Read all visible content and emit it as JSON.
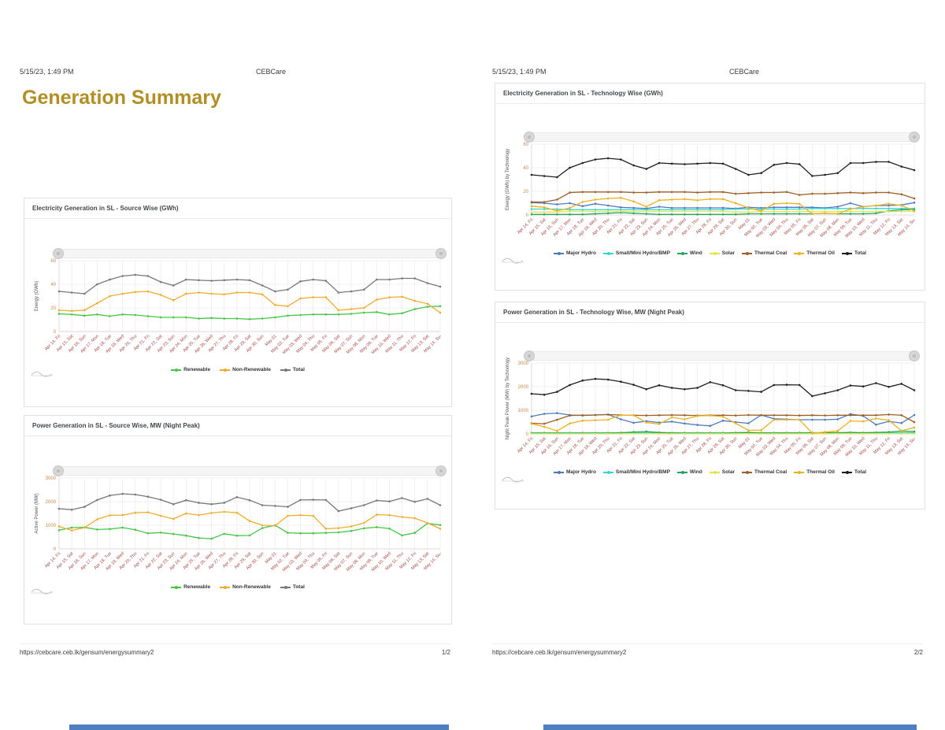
{
  "pages": [
    {
      "header_left": "5/15/23, 1:49 PM",
      "header_center": "CEBCare",
      "title": "Generation Summary",
      "footer_url": "https://cebcare.ceb.lk/gensum/energysummary2",
      "footer_page": "1/2"
    },
    {
      "header_left": "5/15/23, 1:49 PM",
      "header_center": "CEBCare",
      "footer_url": "https://cebcare.ceb.lk/gensum/energysummary2",
      "footer_page": "2/2"
    }
  ],
  "colors": {
    "title_accent": "#b28f25",
    "x_tick_label": "#a94442",
    "y_tick_label": "#c8894b",
    "grid": "#efe9e9",
    "axis_line": "#e0d8d8",
    "watermark": "#bdbdbd"
  },
  "chart_data": [
    {
      "type": "line",
      "title": "Electricity Generation in SL - Source Wise (GWh)",
      "ylabel": "Energy (GWh)",
      "xlabel": "",
      "ylim": [
        0,
        60
      ],
      "yticks": [
        0,
        20,
        40,
        60
      ],
      "grid": true,
      "legend_position": "bottom",
      "categories": [
        "Apr 14, Fri",
        "Apr 15, Sat",
        "Apr 16, Sun",
        "Apr 17, Mon",
        "Apr 18, Tue",
        "Apr 19, Wed",
        "Apr 20, Thu",
        "Apr 21, Fri",
        "Apr 22, Sat",
        "Apr 23, Sun",
        "Apr 24, Mon",
        "Apr 25, Tue",
        "Apr 26, Wed",
        "Apr 27, Thu",
        "Apr 28, Fri",
        "Apr 29, Sat",
        "Apr 30, Sun",
        "May 01",
        "May 02, Tue",
        "May 03, Wed",
        "May 04, Thu",
        "May 05, Fri",
        "May 06, Sat",
        "May 07, Sun",
        "May 08, Mon",
        "May 09, Tue",
        "May 10, Wed",
        "May 11, Thu",
        "May 12, Fri",
        "May 13, Sat",
        "May 14, Su-"
      ],
      "series": [
        {
          "name": "Renewable",
          "color": "#46c646",
          "values": [
            15,
            14.5,
            13.5,
            14.5,
            13,
            14.5,
            14,
            13,
            12,
            12,
            12,
            11,
            11.5,
            11,
            11,
            10.5,
            11,
            12,
            13.5,
            14,
            14.5,
            14.5,
            14.5,
            15,
            16,
            16.5,
            14.5,
            15.5,
            19,
            21,
            21.5
          ]
        },
        {
          "name": "Non-Renewable",
          "color": "#efac2d",
          "values": [
            18,
            17.5,
            18,
            24,
            30,
            32,
            33.5,
            34,
            31,
            26.5,
            32,
            33,
            32,
            31.5,
            33,
            33,
            31.5,
            22.5,
            21.5,
            28,
            29,
            29,
            18,
            19,
            20,
            27,
            29,
            29.5,
            26,
            23.5,
            16
          ]
        },
        {
          "name": "Total",
          "color": "#787878",
          "values": [
            34,
            33,
            32,
            40,
            44,
            47,
            48,
            47,
            42,
            39,
            44,
            43.5,
            43,
            43.5,
            44,
            43.5,
            39,
            34,
            35.5,
            42.5,
            44,
            43,
            33,
            34,
            35.5,
            44,
            44,
            45,
            45,
            41,
            38
          ]
        }
      ]
    },
    {
      "type": "line",
      "title": "Power Generation in SL - Source Wise, MW (Night Peak)",
      "ylabel": "Active Power (MW)",
      "xlabel": "",
      "ylim": [
        0,
        3000
      ],
      "yticks": [
        0,
        1000,
        2000,
        3000
      ],
      "grid": true,
      "legend_position": "bottom",
      "categories": [
        "Apr 14, Fri",
        "Apr 15, Sat",
        "Apr 16, Sun",
        "Apr 17, Mon",
        "Apr 18, Tue",
        "Apr 19, Wed",
        "Apr 20, Thu",
        "Apr 21, Fri",
        "Apr 22, Sat",
        "Apr 23, Sun",
        "Apr 24, Mon",
        "Apr 25, Tue",
        "Apr 26, Wed",
        "Apr 27, Thu",
        "Apr 28, Fri",
        "Apr 29, Sat",
        "Apr 30, Sun",
        "May 01",
        "May 02, Tue",
        "May 03, Wed",
        "May 04, Thu",
        "May 05, Fri",
        "May 06, Sat",
        "May 07, Sun",
        "May 08, Mon",
        "May 09, Tue",
        "May 10, Wed",
        "May 11, Thu",
        "May 12, Fri",
        "May 13, Sat",
        "May 14, Su-"
      ],
      "series": [
        {
          "name": "Renewable",
          "color": "#46c646",
          "values": [
            790,
            900,
            910,
            820,
            840,
            900,
            810,
            660,
            690,
            630,
            560,
            460,
            430,
            640,
            560,
            570,
            880,
            1000,
            680,
            660,
            660,
            680,
            700,
            760,
            870,
            920,
            860,
            570,
            680,
            1080,
            1010
          ]
        },
        {
          "name": "Non-Renewable",
          "color": "#efac2d",
          "values": [
            950,
            780,
            900,
            1250,
            1420,
            1430,
            1530,
            1550,
            1400,
            1270,
            1500,
            1430,
            1520,
            1570,
            1530,
            1180,
            1000,
            980,
            1400,
            1430,
            1400,
            850,
            880,
            950,
            1100,
            1450,
            1430,
            1350,
            1300,
            1100,
            850
          ]
        },
        {
          "name": "Total",
          "color": "#787878",
          "values": [
            1700,
            1660,
            1780,
            2070,
            2260,
            2330,
            2300,
            2210,
            2080,
            1890,
            2060,
            1950,
            1890,
            1950,
            2190,
            2060,
            1850,
            1820,
            1780,
            2070,
            2080,
            2070,
            1600,
            1720,
            1850,
            2050,
            2010,
            2150,
            1990,
            2120,
            1850
          ]
        }
      ]
    },
    {
      "type": "line",
      "title": "Electricity Generation in SL - Technology Wise (GWh)",
      "ylabel": "Energy (GWh) by Technology",
      "xlabel": "",
      "ylim": [
        0,
        60
      ],
      "yticks": [
        0,
        20,
        40,
        60
      ],
      "grid": true,
      "legend_position": "bottom",
      "categories": [
        "Apr 14, Fri",
        "Apr 15, Sat",
        "Apr 16, Sun",
        "Apr 17, Mon",
        "Apr 18, Tue",
        "Apr 19, Wed",
        "Apr 20, Thu",
        "Apr 21, Fri",
        "Apr 22, Sat",
        "Apr 23, Sun",
        "Apr 24, Mon",
        "Apr 25, Tue",
        "Apr 26, Wed",
        "Apr 27, Thu",
        "Apr 28, Fri",
        "Apr 29, Sat",
        "Apr 30, Sun",
        "May 01",
        "May 02, Tue",
        "May 03, Wed",
        "May 04, Thu",
        "May 05, Fri",
        "May 06, Sat",
        "May 07, Sun",
        "May 08, Mon",
        "May 09, Tue",
        "May 10, Wed",
        "May 11, Thu",
        "May 12, Fri",
        "May 13, Sat",
        "May 14, Su-"
      ],
      "series": [
        {
          "name": "Major Hydro",
          "color": "#4d79c0",
          "values": [
            10.5,
            10,
            9,
            10,
            7.5,
            9.5,
            8,
            6.5,
            6,
            5.5,
            7,
            6,
            6,
            6,
            6,
            6,
            5.5,
            6.5,
            6,
            6.5,
            6.5,
            6.5,
            6.5,
            6,
            7,
            10,
            7,
            8,
            8,
            8.5,
            10.5
          ]
        },
        {
          "name": "Small/Mini Hydro/BMP",
          "color": "#36d6d6",
          "values": [
            5,
            5,
            5,
            4.5,
            4.5,
            4.5,
            4.5,
            4.5,
            4.5,
            4.5,
            4.5,
            4.5,
            4.5,
            4.5,
            4.5,
            4.5,
            5,
            5,
            5,
            5,
            5,
            5,
            5.5,
            5.5,
            5.5,
            5.5,
            5.5,
            5.5,
            5.5,
            5.5,
            5.5
          ]
        },
        {
          "name": "Wind",
          "color": "#26a65b",
          "values": [
            0.5,
            0.5,
            0.5,
            0.5,
            0.5,
            1,
            1.5,
            2,
            1.5,
            1,
            0.5,
            0.5,
            0.5,
            0.5,
            0.5,
            0.5,
            0.5,
            1,
            1,
            1,
            1,
            1,
            1,
            1.5,
            1,
            1,
            1,
            1.5,
            3.5,
            4.5,
            4.5
          ]
        },
        {
          "name": "Solar",
          "color": "#e4e44e",
          "values": [
            2.5,
            2.5,
            2.5,
            3,
            3,
            3,
            3,
            3,
            3,
            3,
            3,
            3,
            3,
            3,
            3,
            3,
            2.5,
            2.5,
            3,
            3,
            3,
            3,
            3,
            3,
            3,
            3,
            3,
            3,
            3,
            3,
            3
          ]
        },
        {
          "name": "Thermal Coal",
          "color": "#9d6026",
          "values": [
            11,
            11,
            13,
            19,
            19.5,
            19.5,
            19.5,
            19.5,
            19,
            19,
            19.5,
            19.5,
            19.5,
            19,
            19.5,
            19.5,
            18,
            18.5,
            19,
            19,
            19.5,
            17,
            18,
            18,
            18.5,
            19,
            18.5,
            19,
            19,
            17.5,
            14
          ]
        },
        {
          "name": "Thermal Oil",
          "color": "#edb120",
          "values": [
            7.5,
            6.5,
            3.5,
            6,
            11,
            13,
            14,
            14.5,
            11.5,
            7,
            12.5,
            13,
            13.5,
            12.5,
            13.5,
            13.5,
            10,
            6,
            3.5,
            9.5,
            10,
            9.5,
            1,
            1.5,
            1,
            5,
            7,
            8,
            9.5,
            8,
            3.5
          ]
        },
        {
          "name": "Total",
          "color": "#1f1f1f",
          "values": [
            34,
            33,
            32,
            40,
            44,
            47,
            48,
            47,
            42,
            39,
            44,
            43.5,
            43,
            43.5,
            44,
            43.5,
            39,
            34,
            35.5,
            42.5,
            44,
            43,
            33,
            34,
            35.5,
            44,
            44,
            45,
            45,
            41,
            38
          ]
        }
      ]
    },
    {
      "type": "line",
      "title": "Power Generation in SL - Technology Wise, MW (Night Peak)",
      "ylabel": "Night Peak Power (MW) by Technology",
      "xlabel": "",
      "ylim": [
        0,
        3000
      ],
      "yticks": [
        0,
        1000,
        2000,
        3000
      ],
      "grid": true,
      "legend_position": "bottom",
      "categories": [
        "Apr 14, Fri",
        "Apr 15, Sat",
        "Apr 16, Sun",
        "Apr 17, Mon",
        "Apr 18, Tue",
        "Apr 19, Wed",
        "Apr 20, Thu",
        "Apr 21, Fri",
        "Apr 22, Sat",
        "Apr 23, Sun",
        "Apr 24, Mon",
        "Apr 25, Tue",
        "Apr 26, Wed",
        "Apr 27, Thu",
        "Apr 28, Fri",
        "Apr 29, Sat",
        "Apr 30, Sun",
        "May 01",
        "May 02, Tue",
        "May 03, Wed",
        "May 04, Thu",
        "May 05, Fri",
        "May 06, Sat",
        "May 07, Sun",
        "May 08, Mon",
        "May 09, Tue",
        "May 10, Wed",
        "May 11, Thu",
        "May 12, Fri",
        "May 13, Sat",
        "May 14, Su-"
      ],
      "series": [
        {
          "name": "Major Hydro",
          "color": "#4d79c0",
          "values": [
            740,
            850,
            880,
            800,
            780,
            800,
            820,
            620,
            470,
            540,
            480,
            520,
            440,
            380,
            340,
            560,
            500,
            450,
            800,
            640,
            620,
            600,
            600,
            600,
            620,
            840,
            760,
            390,
            530,
            460,
            800
          ]
        },
        {
          "name": "Small/Mini Hydro/BMP",
          "color": "#36d6d6",
          "values": [
            50,
            50,
            50,
            50,
            50,
            50,
            50,
            50,
            50,
            50,
            50,
            50,
            50,
            50,
            50,
            50,
            50,
            50,
            50,
            50,
            50,
            50,
            50,
            50,
            50,
            50,
            50,
            50,
            50,
            50,
            50
          ]
        },
        {
          "name": "Wind",
          "color": "#26a65b",
          "values": [
            30,
            30,
            30,
            30,
            30,
            30,
            30,
            50,
            80,
            100,
            60,
            40,
            30,
            30,
            30,
            30,
            50,
            60,
            40,
            40,
            40,
            40,
            50,
            50,
            50,
            60,
            50,
            60,
            80,
            120,
            100
          ]
        },
        {
          "name": "Solar",
          "color": "#e4e44e",
          "values": [
            5,
            5,
            5,
            5,
            5,
            5,
            5,
            5,
            5,
            5,
            5,
            5,
            5,
            5,
            5,
            5,
            5,
            5,
            5,
            5,
            5,
            5,
            5,
            5,
            5,
            5,
            5,
            5,
            5,
            5,
            5
          ]
        },
        {
          "name": "Thermal Coal",
          "color": "#9d6026",
          "values": [
            450,
            430,
            600,
            780,
            790,
            800,
            820,
            800,
            790,
            780,
            790,
            800,
            790,
            780,
            790,
            790,
            780,
            800,
            790,
            790,
            790,
            780,
            790,
            780,
            790,
            790,
            790,
            790,
            820,
            790,
            500
          ]
        },
        {
          "name": "Thermal Oil",
          "color": "#edb120",
          "values": [
            430,
            300,
            130,
            440,
            560,
            580,
            600,
            800,
            790,
            480,
            420,
            700,
            620,
            760,
            780,
            730,
            450,
            150,
            160,
            600,
            600,
            600,
            30,
            80,
            130,
            550,
            530,
            650,
            580,
            130,
            270
          ]
        },
        {
          "name": "Total",
          "color": "#1f1f1f",
          "values": [
            1700,
            1660,
            1780,
            2070,
            2260,
            2330,
            2300,
            2210,
            2080,
            1890,
            2060,
            1950,
            1890,
            1950,
            2190,
            2060,
            1850,
            1820,
            1780,
            2070,
            2080,
            2070,
            1600,
            1720,
            1850,
            2050,
            2010,
            2150,
            1990,
            2120,
            1850
          ]
        }
      ]
    }
  ]
}
